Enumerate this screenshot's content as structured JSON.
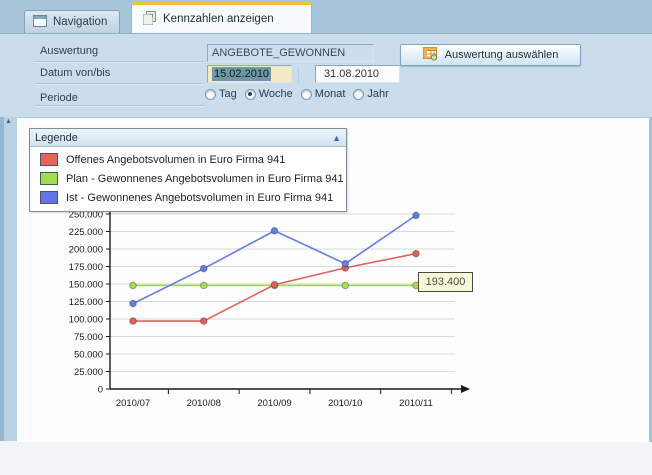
{
  "tabs": [
    {
      "label": "Navigation",
      "icon": "window-icon",
      "active": false
    },
    {
      "label": "Kennzahlen anzeigen",
      "icon": "pages-icon",
      "active": true
    }
  ],
  "form": {
    "auswertung_label": "Auswertung",
    "auswertung_value": "ANGEBOTE_GEWONNEN",
    "select_button_label": "Auswertung auswählen",
    "select_button_icon": "table-grid-icon",
    "datum_label": "Datum von/bis",
    "datum_von": "15.02.2010",
    "datum_bis": "31.08.2010",
    "periode_label": "Periode",
    "periode_options": [
      {
        "label": "Tag",
        "selected": false
      },
      {
        "label": "Woche",
        "selected": true
      },
      {
        "label": "Monat",
        "selected": false
      },
      {
        "label": "Jahr",
        "selected": false
      }
    ]
  },
  "splitter": {
    "collapse_icon": "triangle-up-icon"
  },
  "legend": {
    "title": "Legende",
    "collapse_icon": "triangle-up-icon",
    "items": [
      {
        "label": "Offenes Angebotsvolumen in Euro Firma 941",
        "color": "#e8625c"
      },
      {
        "label": "Plan - Gewonnenes Angebotsvolumen in Euro Firma 941",
        "color": "#9ce04e"
      },
      {
        "label": "Ist - Gewonnenes Angebotsvolumen in Euro Firma 941",
        "color": "#6374e4"
      }
    ]
  },
  "tooltip": {
    "value": "193.400"
  },
  "chart_data": {
    "type": "line",
    "categories": [
      "2010/07",
      "2010/08",
      "2010/09",
      "2010/10",
      "2010/11"
    ],
    "series": [
      {
        "name": "Offenes Angebotsvolumen in Euro Firma 941",
        "color": "#e0615c",
        "values": [
          97000,
          97000,
          149000,
          173000,
          193400
        ]
      },
      {
        "name": "Plan - Gewonnenes Angebotsvolumen in Euro Firma 941",
        "color": "#a2dc50",
        "values": [
          148000,
          148000,
          148000,
          148000,
          148000
        ]
      },
      {
        "name": "Ist - Gewonnenes Angebotsvolumen in Euro Firma 941",
        "color": "#637ee0",
        "values": [
          122000,
          172000,
          226000,
          179000,
          248000
        ]
      }
    ],
    "title": "",
    "xlabel": "",
    "ylabel": "",
    "ylim": [
      0,
      250000
    ],
    "ytick_step": 25000,
    "ytick_labels": [
      "0",
      "25.000",
      "50.000",
      "75.000",
      "100.000",
      "125.000",
      "150.000",
      "175.000",
      "200.000",
      "225.000",
      "250.000"
    ],
    "grid": true,
    "gridline_color": "#d9d9d9",
    "axis_color": "#1a1a1a",
    "legend_position": "top-left-overlay"
  }
}
